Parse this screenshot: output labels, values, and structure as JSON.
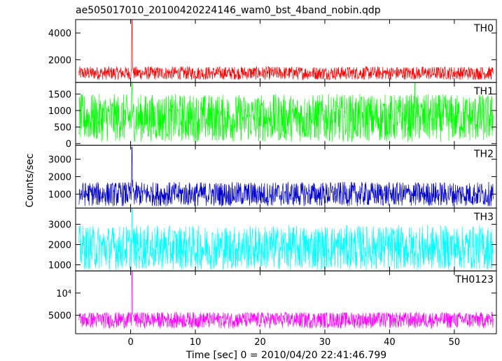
{
  "chart_data": {
    "type": "line",
    "title": "ae505017010_20100420224146_wam0_bst_4band_nobin.qdp",
    "xlabel": "Time [sec] 0 = 2010/04/20 22:41:46.799",
    "ylabel": "Counts/sec",
    "xlim": [
      -8.5,
      56.5
    ],
    "x_ticks": [
      0,
      10,
      20,
      30,
      40,
      50
    ],
    "x_tick_labels": [
      "0",
      "10",
      "20",
      "30",
      "40",
      "50"
    ],
    "grid": false,
    "x_range": [
      -8.0,
      56.0
    ],
    "series": [
      {
        "name": "TH0",
        "color": "#ff0000",
        "ylim": [
          300,
          5000
        ],
        "y_ticks": [
          2000,
          4000
        ],
        "y_tick_labels": [
          "2000",
          "4000"
        ],
        "log": false,
        "baseline": 850,
        "noise_low": 350,
        "noise_high": 650,
        "spike_peak": 5000
      },
      {
        "name": "TH1",
        "color": "#00ff00",
        "ylim": [
          -50,
          1850
        ],
        "y_ticks": [
          0,
          500,
          1000,
          1500
        ],
        "y_tick_labels": [
          "0",
          "500",
          "1000",
          "1500"
        ],
        "log": false,
        "baseline": 600,
        "noise_low": 550,
        "noise_high": 900,
        "spike_peak": 1850
      },
      {
        "name": "TH2",
        "color": "#0000cc",
        "ylim": [
          200,
          3800
        ],
        "y_ticks": [
          1000,
          2000,
          3000
        ],
        "y_tick_labels": [
          "1000",
          "2000",
          "3000"
        ],
        "log": false,
        "baseline": 850,
        "noise_low": 550,
        "noise_high": 850,
        "spike_peak": 3700
      },
      {
        "name": "TH3",
        "color": "#00ffff",
        "ylim": [
          700,
          3800
        ],
        "y_ticks": [
          1000,
          2000,
          3000
        ],
        "y_tick_labels": [
          "1000",
          "2000",
          "3000"
        ],
        "log": false,
        "baseline": 1650,
        "noise_low": 900,
        "noise_high": 1300,
        "spike_peak": 3800
      },
      {
        "name": "TH0123",
        "color": "#ff00ff",
        "ylim": [
          2800,
          20000
        ],
        "y_ticks": [
          5000,
          10000
        ],
        "y_tick_labels": [
          "5000",
          "10⁴"
        ],
        "log": true,
        "baseline": 4200,
        "noise_low": 900,
        "noise_high": 1300,
        "spike_peak": 20000
      }
    ]
  }
}
